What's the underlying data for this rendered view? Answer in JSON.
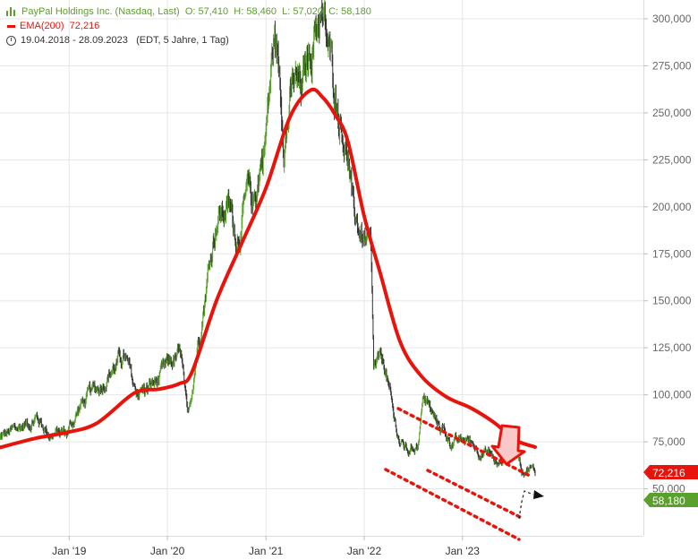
{
  "legend": {
    "instrument": "PayPal Holdings Inc. (Nasdaq, Last)",
    "open": "O: 57,410",
    "high": "H: 58,460",
    "low": "L: 57,020",
    "close": "C: 58,180",
    "ema_label": "EMA(200)",
    "ema_value": "72,216",
    "range": "19.04.2018 - 28.09.2023",
    "range_detail": "(EDT, 5 Jahre, 1 Tag)",
    "icons": [
      "ohlc-bars-icon",
      "ema-line-icon",
      "clock-icon"
    ]
  },
  "colors": {
    "price": "#5aa02c",
    "price_down": "#333333",
    "ema": "#e8140c",
    "channel": "#e8140c",
    "arrow_fill": "#f9c8c8",
    "arrow_stroke": "#e8140c",
    "grid": "#e6e6e6"
  },
  "badges": {
    "ema": "72,216",
    "close": "58,180"
  },
  "chart_data": {
    "type": "line",
    "ylim": [
      25000,
      310000
    ],
    "yticks": [
      50000,
      75000,
      100000,
      125000,
      150000,
      175000,
      200000,
      225000,
      250000,
      275000,
      300000
    ],
    "yticklabels": [
      "50,000",
      "75,000",
      "100,000",
      "125,000",
      "150,000",
      "175,000",
      "200,000",
      "225,000",
      "250,000",
      "275,000",
      "300,000"
    ],
    "xlim": [
      "2018-04-19",
      "2023-09-28"
    ],
    "xticks": [
      "2019-01-01",
      "2020-01-01",
      "2021-01-01",
      "2022-01-01",
      "2023-01-01"
    ],
    "xticklabels": [
      "Jan '19",
      "Jan '20",
      "Jan '21",
      "Jan '22",
      "Jan '23"
    ],
    "series": [
      {
        "name": "PayPal Holdings Inc. (Nasdaq, Last)",
        "x": [
          "2018-04-19",
          "2018-06-15",
          "2018-09-01",
          "2018-10-25",
          "2018-12-24",
          "2019-02-15",
          "2019-04-15",
          "2019-06-01",
          "2019-07-25",
          "2019-09-01",
          "2019-10-20",
          "2019-12-01",
          "2020-01-15",
          "2020-02-20",
          "2020-03-16",
          "2020-04-20",
          "2020-05-20",
          "2020-07-01",
          "2020-08-15",
          "2020-09-15",
          "2020-10-25",
          "2020-11-15",
          "2021-01-01",
          "2021-02-01",
          "2021-02-20",
          "2021-03-10",
          "2021-04-15",
          "2021-05-15",
          "2021-06-15",
          "2021-07-20",
          "2021-08-10",
          "2021-09-10",
          "2021-10-05",
          "2021-11-01",
          "2021-11-20",
          "2021-12-20",
          "2022-01-25",
          "2022-02-05",
          "2022-02-20",
          "2022-03-20",
          "2022-04-20",
          "2022-05-15",
          "2022-06-15",
          "2022-07-20",
          "2022-08-10",
          "2022-09-20",
          "2022-10-15",
          "2022-11-15",
          "2022-12-15",
          "2023-01-20",
          "2023-02-10",
          "2023-03-15",
          "2023-04-15",
          "2023-05-10",
          "2023-06-05",
          "2023-07-20",
          "2023-08-10",
          "2023-09-10",
          "2023-09-28"
        ],
        "y": [
          77000,
          81000,
          88000,
          79000,
          80000,
          95000,
          103000,
          113000,
          120000,
          102000,
          103000,
          108000,
          117000,
          120000,
          84000,
          125000,
          155000,
          195000,
          200000,
          185000,
          205000,
          200000,
          240000,
          290000,
          270000,
          240000,
          265000,
          260000,
          285000,
          305000,
          290000,
          265000,
          250000,
          230000,
          195000,
          186000,
          175000,
          110000,
          115000,
          115000,
          87000,
          74000,
          70000,
          75000,
          100000,
          86000,
          83000,
          76000,
          74000,
          76000,
          74000,
          70000,
          69000,
          62000,
          67000,
          75000,
          61000,
          62000,
          58180
        ]
      },
      {
        "name": "EMA(200)",
        "x": [
          "2018-04-19",
          "2018-09-01",
          "2018-12-24",
          "2019-04-15",
          "2019-09-01",
          "2019-12-01",
          "2020-02-15",
          "2020-04-01",
          "2020-07-01",
          "2020-10-01",
          "2021-01-01",
          "2021-04-01",
          "2021-06-15",
          "2021-08-01",
          "2021-09-15",
          "2021-11-01",
          "2022-01-01",
          "2022-03-01",
          "2022-05-15",
          "2022-08-01",
          "2022-11-01",
          "2023-02-01",
          "2023-05-01",
          "2023-07-15",
          "2023-09-28"
        ],
        "y": [
          72000,
          77000,
          80000,
          85000,
          101000,
          103000,
          106000,
          112000,
          150000,
          180000,
          210000,
          248000,
          262000,
          258000,
          249000,
          235000,
          195000,
          165000,
          128000,
          110000,
          99000,
          93000,
          85000,
          76000,
          72216
        ]
      }
    ],
    "annotations": [
      "descending channel (dotted)",
      "down arrow at EMA(200)",
      "dashed projection arrow"
    ]
  }
}
